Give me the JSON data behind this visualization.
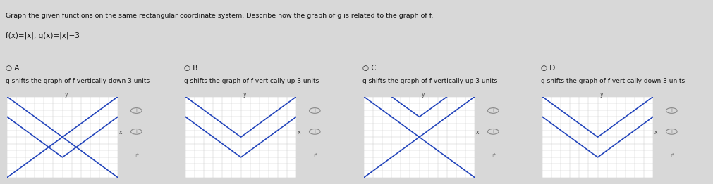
{
  "title": "Graph the given functions on the same rectangular coordinate system. Describe how the graph of g is related to the graph of f.",
  "subtitle": "f(x)=|x|, g(x)=|x|−3",
  "page_bg": "#d8d8d8",
  "header_bg": "#f5f5f5",
  "red_bar_color": "#cc2222",
  "options": [
    {
      "label": "A.",
      "description": "g shifts the graph of f vertically down 3 units",
      "g_shift": -3,
      "show_neg_f": true,
      "show_neg_g": false
    },
    {
      "label": "B.",
      "description": "g shifts the graph of f vertically up 3 units",
      "g_shift": -3,
      "show_neg_f": false,
      "show_neg_g": false
    },
    {
      "label": "C.",
      "description": "g shifts the graph of f vertically up 3 units",
      "g_shift": 3,
      "show_neg_f": true,
      "show_neg_g": false
    },
    {
      "label": "D.",
      "description": "g shifts the graph of f vertically down 3 units",
      "g_shift": -3,
      "show_neg_f": false,
      "show_neg_g": false
    }
  ],
  "line_color": "#2244bb",
  "grid_color": "#cccccc",
  "axis_color": "#555555",
  "xlim": [
    -6,
    6
  ],
  "ylim": [
    -6,
    6
  ],
  "label_fontsize": 7.5,
  "desc_fontsize": 6.5,
  "title_fontsize": 6.8,
  "subtitle_fontsize": 7.5,
  "tick_interval": 1,
  "line_width": 1.2
}
